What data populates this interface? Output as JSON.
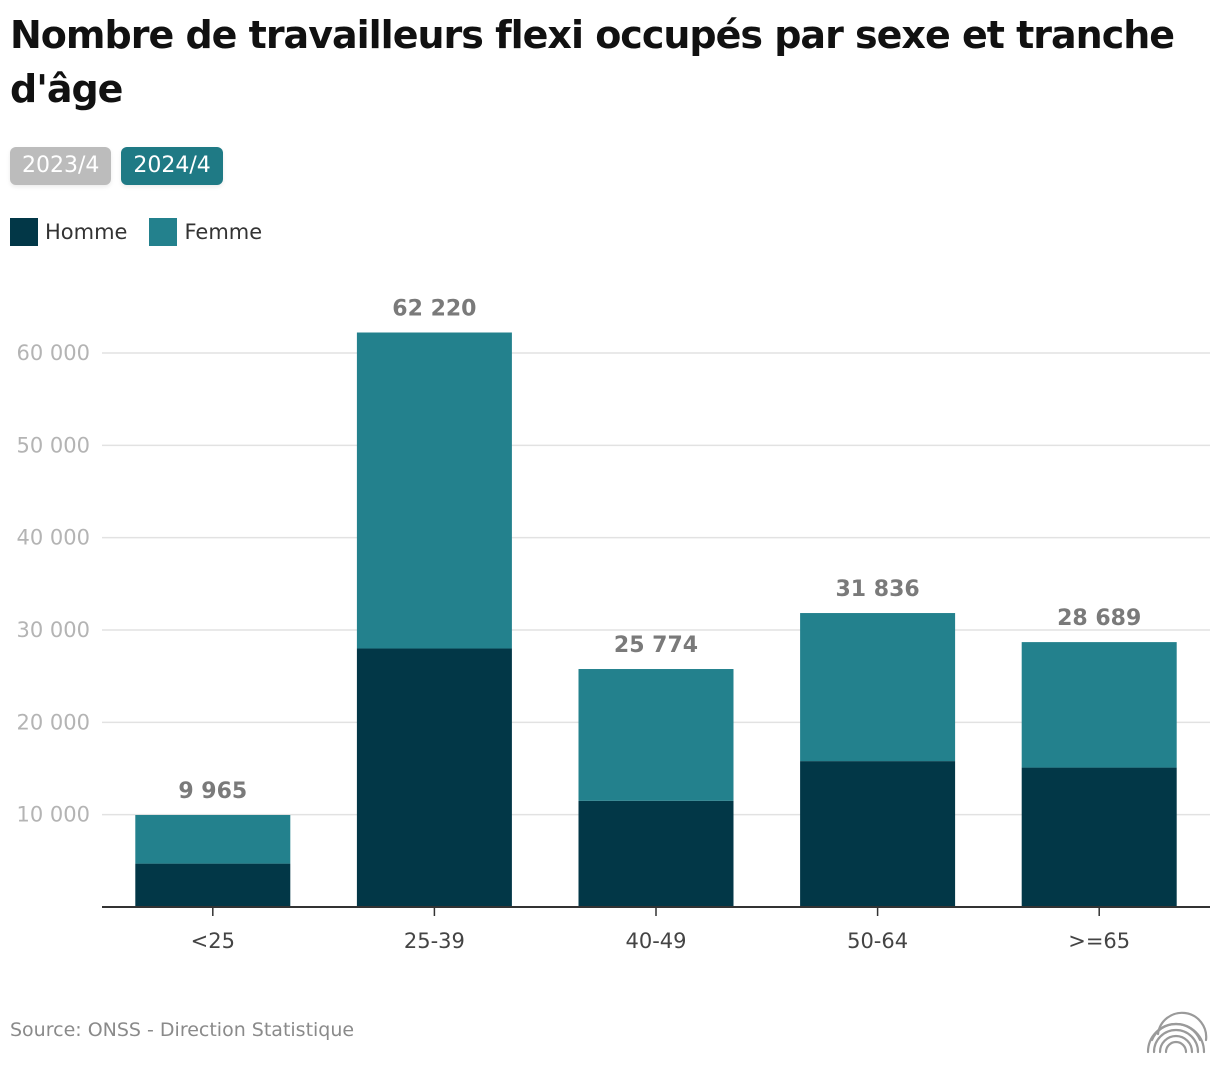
{
  "title": "Nombre de travailleurs flexi occupés par sexe et tranche d'âge",
  "tabs": [
    {
      "label": "2023/4",
      "active": false
    },
    {
      "label": "2024/4",
      "active": true
    }
  ],
  "legend": [
    {
      "label": "Homme",
      "color": "#023747"
    },
    {
      "label": "Femme",
      "color": "#23818d"
    }
  ],
  "source": "Source: ONSS - Direction Statistique",
  "logo_icon": "onss-logo-icon",
  "chart_data": {
    "type": "bar",
    "stacked": true,
    "categories": [
      "<25",
      "25-39",
      "40-49",
      "50-64",
      ">=65"
    ],
    "series": [
      {
        "name": "Homme",
        "color": "#023747",
        "values": [
          4700,
          28000,
          11500,
          15800,
          15100
        ]
      },
      {
        "name": "Femme",
        "color": "#23818d",
        "values": [
          5265,
          34220,
          14274,
          16036,
          13589
        ]
      }
    ],
    "totals": [
      9965,
      62220,
      25774,
      31836,
      28689
    ],
    "total_labels": [
      "9 965",
      "62 220",
      "25 774",
      "31 836",
      "28 689"
    ],
    "ylim": [
      0,
      60000
    ],
    "yticks": [
      10000,
      20000,
      30000,
      40000,
      50000,
      60000
    ],
    "ytick_labels": [
      "10 000",
      "20 000",
      "30 000",
      "40 000",
      "50 000",
      "60 000"
    ],
    "grid": true,
    "legend_position": "top-left",
    "colors": {
      "grid": "#e2e2e2",
      "axis": "#333333",
      "tick_text": "#b4b4b4",
      "category_text": "#444444",
      "total_text": "#7a7a7a"
    }
  }
}
